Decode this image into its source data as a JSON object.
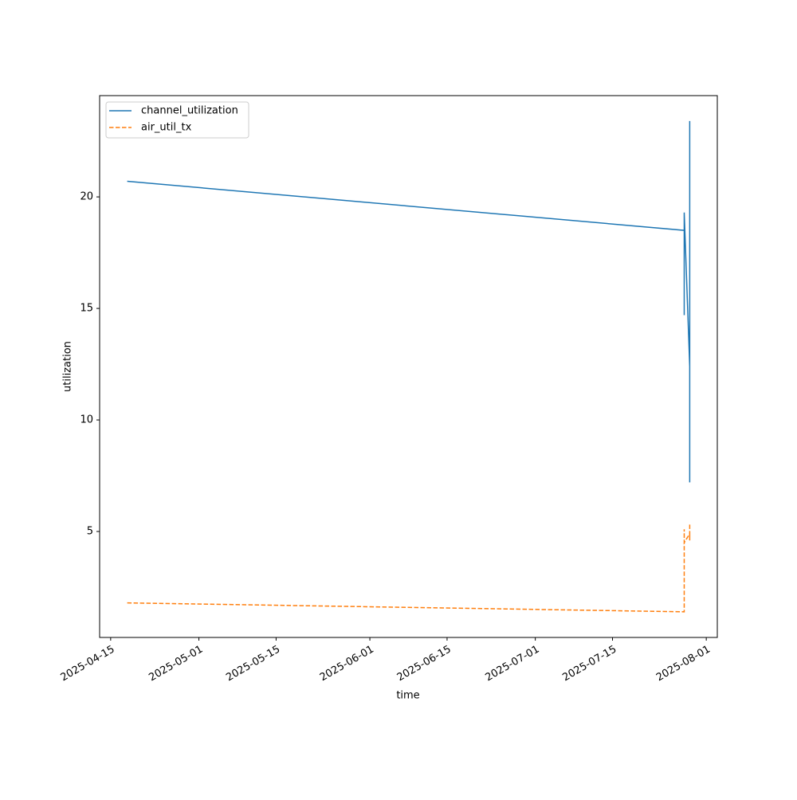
{
  "chart_data": {
    "type": "line",
    "xlabel": "time",
    "ylabel": "utilization",
    "x": [
      "2025-04-18",
      "2025-07-28",
      "2025-07-28",
      "2025-07-28",
      "2025-07-28",
      "2025-07-29",
      "2025-07-29",
      "2025-07-29",
      "2025-07-29",
      "2025-07-29",
      "2025-07-29"
    ],
    "series": [
      {
        "name": "channel_utilization",
        "color": "#1f77b4",
        "linestyle": "solid",
        "values": [
          20.7,
          18.5,
          17.8,
          14.7,
          19.3,
          12.4,
          23.4,
          10.1,
          22.7,
          12.4,
          7.2
        ]
      },
      {
        "name": "air_util_tx",
        "color": "#ff7f0e",
        "linestyle": "dashed",
        "values": [
          1.8,
          1.4,
          4.3,
          5.1,
          4.5,
          4.9,
          4.6,
          5.0,
          4.7,
          5.2,
          5.4
        ]
      }
    ],
    "xlim": [
      "2025-04-13",
      "2025-08-03"
    ],
    "xticks": [
      "2025-04-15",
      "2025-05-01",
      "2025-05-15",
      "2025-06-01",
      "2025-06-15",
      "2025-07-01",
      "2025-07-15",
      "2025-08-01"
    ],
    "ylim": [
      0.25,
      24.54
    ],
    "yticks": [
      5,
      10,
      15,
      20
    ],
    "grid": false,
    "legend": "upper left"
  }
}
